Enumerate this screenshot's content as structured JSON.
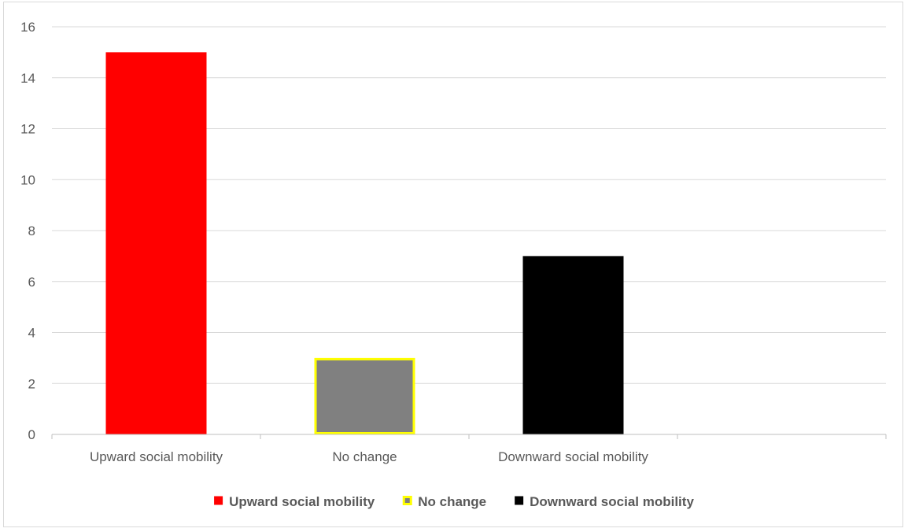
{
  "chart_data": {
    "type": "bar",
    "categories": [
      "Upward social mobility",
      "No change",
      "Downward social mobility",
      ""
    ],
    "series": [
      {
        "name": "Upward social mobility",
        "category_index": 0,
        "value": 15,
        "color": "#ff0000",
        "border": "#ff0000"
      },
      {
        "name": "No change",
        "category_index": 1,
        "value": 3,
        "color": "#808080",
        "border": "#ffff00"
      },
      {
        "name": "Downward social mobility",
        "category_index": 2,
        "value": 7,
        "color": "#000000",
        "border": "#000000"
      }
    ],
    "ylim": [
      0,
      16
    ],
    "yticks": [
      "0",
      "2",
      "4",
      "6",
      "8",
      "10",
      "12",
      "14",
      "16"
    ],
    "title": "",
    "xlabel": "",
    "ylabel": "",
    "grid": true,
    "legend_position": "bottom",
    "colors": {
      "gridline": "#d9d9d9",
      "axis": "#bfbfbf",
      "text": "#595959"
    }
  }
}
